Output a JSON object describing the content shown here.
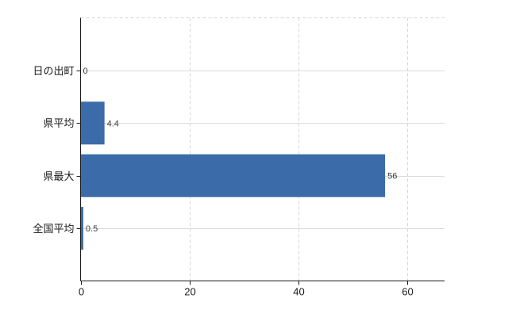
{
  "chart_data": {
    "type": "bar",
    "orientation": "horizontal",
    "title": "",
    "xlabel": "",
    "ylabel": "",
    "categories": [
      "日の出町",
      "県平均",
      "県最大",
      "全国平均"
    ],
    "values": [
      0,
      4.4,
      56,
      0.5
    ],
    "value_labels": [
      "0",
      "4.4",
      "56",
      "0.5"
    ],
    "xticks": [
      0,
      20,
      40,
      60
    ],
    "xtick_labels": [
      "0",
      "20",
      "40",
      "60"
    ],
    "xlim": [
      0,
      67
    ],
    "legend": "none",
    "grid": {
      "horizontal_lines": "solid, one per category, full plot width",
      "vertical_lines": "dashed, at x ticks 20/40/60",
      "top_border": "dashed"
    },
    "colors": {
      "bar_fill": "#3b6ba8",
      "axis_line": "#1a1a1a",
      "solid_gridline": "#d8dcd8",
      "dashed_gridline": "#d6d6d6",
      "category_label": "#1a1a1a",
      "tick_label": "#1a1a1a",
      "value_label": "#3a3a3a",
      "background": "#ffffff"
    }
  }
}
